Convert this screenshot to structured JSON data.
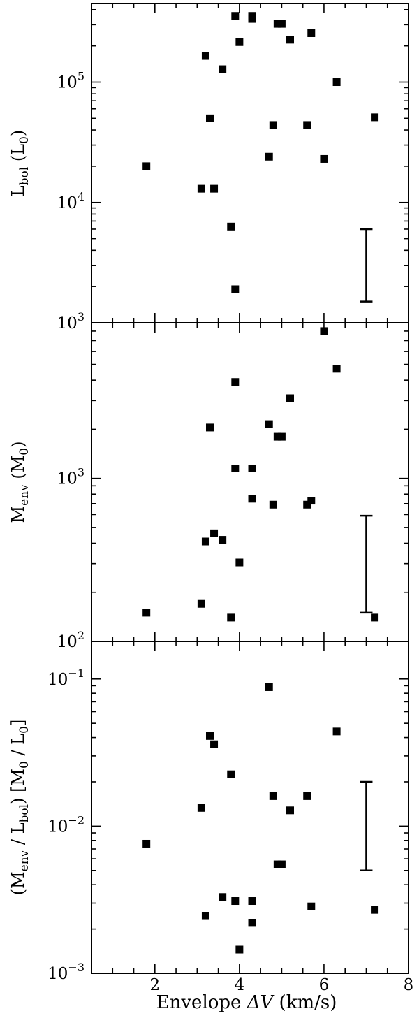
{
  "chart_data": {
    "type": "scatter",
    "xlabel_main": "Envelope ",
    "xlabel_symbol": "ΔV",
    "xlabel_unit": " (km/s)",
    "xlim": [
      0.5,
      8
    ],
    "x_ticks": [
      "2",
      "4",
      "6",
      "8"
    ],
    "panels": [
      {
        "id": "lbol",
        "ylabel": {
          "pre": "L",
          "sub": "bol",
          "post": " (L",
          "sub2": "0",
          "end": ")"
        },
        "yscale": "log",
        "ylim": [
          1000,
          450000
        ],
        "y_major_ticks": [
          {
            "base": "10",
            "exp": "3"
          },
          {
            "base": "10",
            "exp": "4"
          },
          {
            "base": "10",
            "exp": "5"
          }
        ],
        "x": [
          1.8,
          3.1,
          3.2,
          3.3,
          3.4,
          3.6,
          3.8,
          3.9,
          3.9,
          4.0,
          4.3,
          4.3,
          4.7,
          4.8,
          4.9,
          5.0,
          5.2,
          5.6,
          5.7,
          6.0,
          6.3,
          7.2
        ],
        "y": [
          20000,
          13000,
          165000,
          50000,
          13000,
          128000,
          6300,
          1900,
          355000,
          215000,
          335000,
          355000,
          24000,
          44000,
          305000,
          305000,
          225000,
          44000,
          255000,
          23000,
          100000,
          51000
        ],
        "error_bar": {
          "x": 7.0,
          "low": 1500,
          "high": 6000
        }
      },
      {
        "id": "menv",
        "ylabel": {
          "pre": "M",
          "sub": "env",
          "post": " (M",
          "sub2": "0",
          "end": ")"
        },
        "yscale": "log",
        "ylim": [
          100,
          9000
        ],
        "y_major_ticks": [
          {
            "base": "10",
            "exp": "2"
          },
          {
            "base": "10",
            "exp": "3"
          }
        ],
        "x": [
          1.8,
          3.1,
          3.2,
          3.3,
          3.4,
          3.6,
          3.8,
          3.9,
          3.9,
          4.0,
          4.3,
          4.3,
          4.7,
          4.8,
          4.9,
          5.0,
          5.2,
          5.6,
          5.7,
          6.0,
          6.3,
          7.2
        ],
        "y": [
          150,
          170,
          410,
          2050,
          460,
          420,
          140,
          1150,
          3900,
          305,
          750,
          1150,
          2150,
          690,
          1800,
          1800,
          3100,
          690,
          730,
          8000,
          4700,
          140
        ],
        "error_bar": {
          "x": 7.0,
          "low": 150,
          "high": 590
        }
      },
      {
        "id": "ratio",
        "ylabel": {
          "pre": "(M",
          "sub": "env",
          "post": " / L",
          "sub2": "bol",
          "mid": ") [M",
          "sub3": "0",
          "tail": " / L",
          "sub4": "0",
          "end": "]"
        },
        "yscale": "log",
        "ylim": [
          0.001,
          0.18
        ],
        "y_major_ticks": [
          {
            "base": "10",
            "exp": "−3"
          },
          {
            "base": "10",
            "exp": "−2"
          },
          {
            "base": "10",
            "exp": "−1"
          }
        ],
        "x": [
          1.8,
          3.1,
          3.2,
          3.3,
          3.4,
          3.6,
          3.8,
          3.9,
          4.0,
          4.3,
          4.3,
          4.7,
          4.8,
          4.9,
          5.0,
          5.2,
          5.6,
          5.7,
          6.3,
          7.2
        ],
        "y": [
          0.0076,
          0.0133,
          0.00245,
          0.041,
          0.036,
          0.0033,
          0.0225,
          0.0031,
          0.00145,
          0.0031,
          0.0022,
          0.088,
          0.016,
          0.0055,
          0.0055,
          0.0128,
          0.016,
          0.00285,
          0.044,
          0.0027
        ],
        "error_bar": {
          "x": 7.0,
          "low": 0.005,
          "high": 0.02
        }
      }
    ]
  }
}
